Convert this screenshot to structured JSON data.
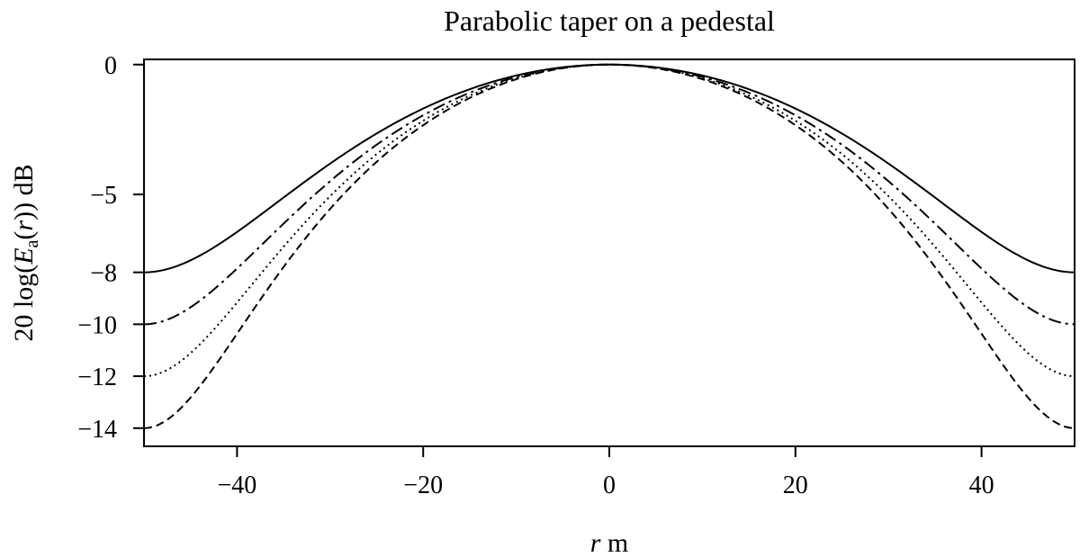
{
  "chart_data": {
    "type": "line",
    "title": "Parabolic taper on a pedestal",
    "xlabel": {
      "var": "r",
      "unit": "m"
    },
    "ylabel": {
      "pre": "20 log(",
      "sym": "E",
      "sub": "a",
      "mid": "(",
      "arg": "r",
      "post": ")) dB"
    },
    "xlim": [
      -50,
      50
    ],
    "ylim": [
      -14.7,
      0.2
    ],
    "x_ticks": [
      -40,
      -20,
      0,
      20,
      40
    ],
    "y_ticks": [
      0,
      -5,
      -8,
      -10,
      -12,
      -14
    ],
    "x_tick_labels": [
      "−40",
      "−20",
      "0",
      "20",
      "40"
    ],
    "y_tick_labels": [
      "0",
      "−5",
      "−8",
      "−10",
      "−12",
      "−14"
    ],
    "grid": false,
    "legend": "none",
    "radius": 50,
    "series": [
      {
        "edge_db": -8,
        "style": "solid"
      },
      {
        "edge_db": -10,
        "style": "dashdot"
      },
      {
        "edge_db": -12,
        "style": "dotted"
      },
      {
        "edge_db": -14,
        "style": "dashed"
      }
    ]
  }
}
